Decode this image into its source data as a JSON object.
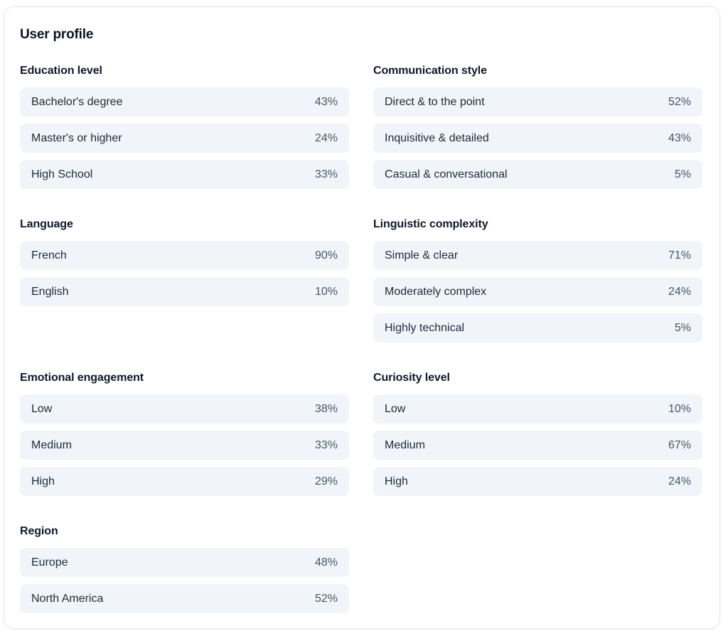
{
  "card": {
    "title": "User profile"
  },
  "colors": {
    "card_background": "#ffffff",
    "card_border": "#e6e6ea",
    "row_background": "#f1f5f9",
    "heading_text": "#0f172a",
    "label_text": "#1e293b",
    "value_text": "#475569"
  },
  "sections": [
    {
      "title": "Education level",
      "rows": [
        {
          "label": "Bachelor's degree",
          "value": "43%"
        },
        {
          "label": "Master's or higher",
          "value": "24%"
        },
        {
          "label": "High School",
          "value": "33%"
        }
      ]
    },
    {
      "title": "Communication style",
      "rows": [
        {
          "label": "Direct & to the point",
          "value": "52%"
        },
        {
          "label": "Inquisitive & detailed",
          "value": "43%"
        },
        {
          "label": "Casual & conversational",
          "value": "5%"
        }
      ]
    },
    {
      "title": "Language",
      "rows": [
        {
          "label": "French",
          "value": "90%"
        },
        {
          "label": "English",
          "value": "10%"
        }
      ]
    },
    {
      "title": "Linguistic complexity",
      "rows": [
        {
          "label": "Simple & clear",
          "value": "71%"
        },
        {
          "label": "Moderately complex",
          "value": "24%"
        },
        {
          "label": "Highly technical",
          "value": "5%"
        }
      ]
    },
    {
      "title": "Emotional engagement",
      "rows": [
        {
          "label": "Low",
          "value": "38%"
        },
        {
          "label": "Medium",
          "value": "33%"
        },
        {
          "label": "High",
          "value": "29%"
        }
      ]
    },
    {
      "title": "Curiosity level",
      "rows": [
        {
          "label": "Low",
          "value": "10%"
        },
        {
          "label": "Medium",
          "value": "67%"
        },
        {
          "label": "High",
          "value": "24%"
        }
      ]
    },
    {
      "title": "Region",
      "rows": [
        {
          "label": "Europe",
          "value": "48%"
        },
        {
          "label": "North America",
          "value": "52%"
        }
      ]
    }
  ]
}
